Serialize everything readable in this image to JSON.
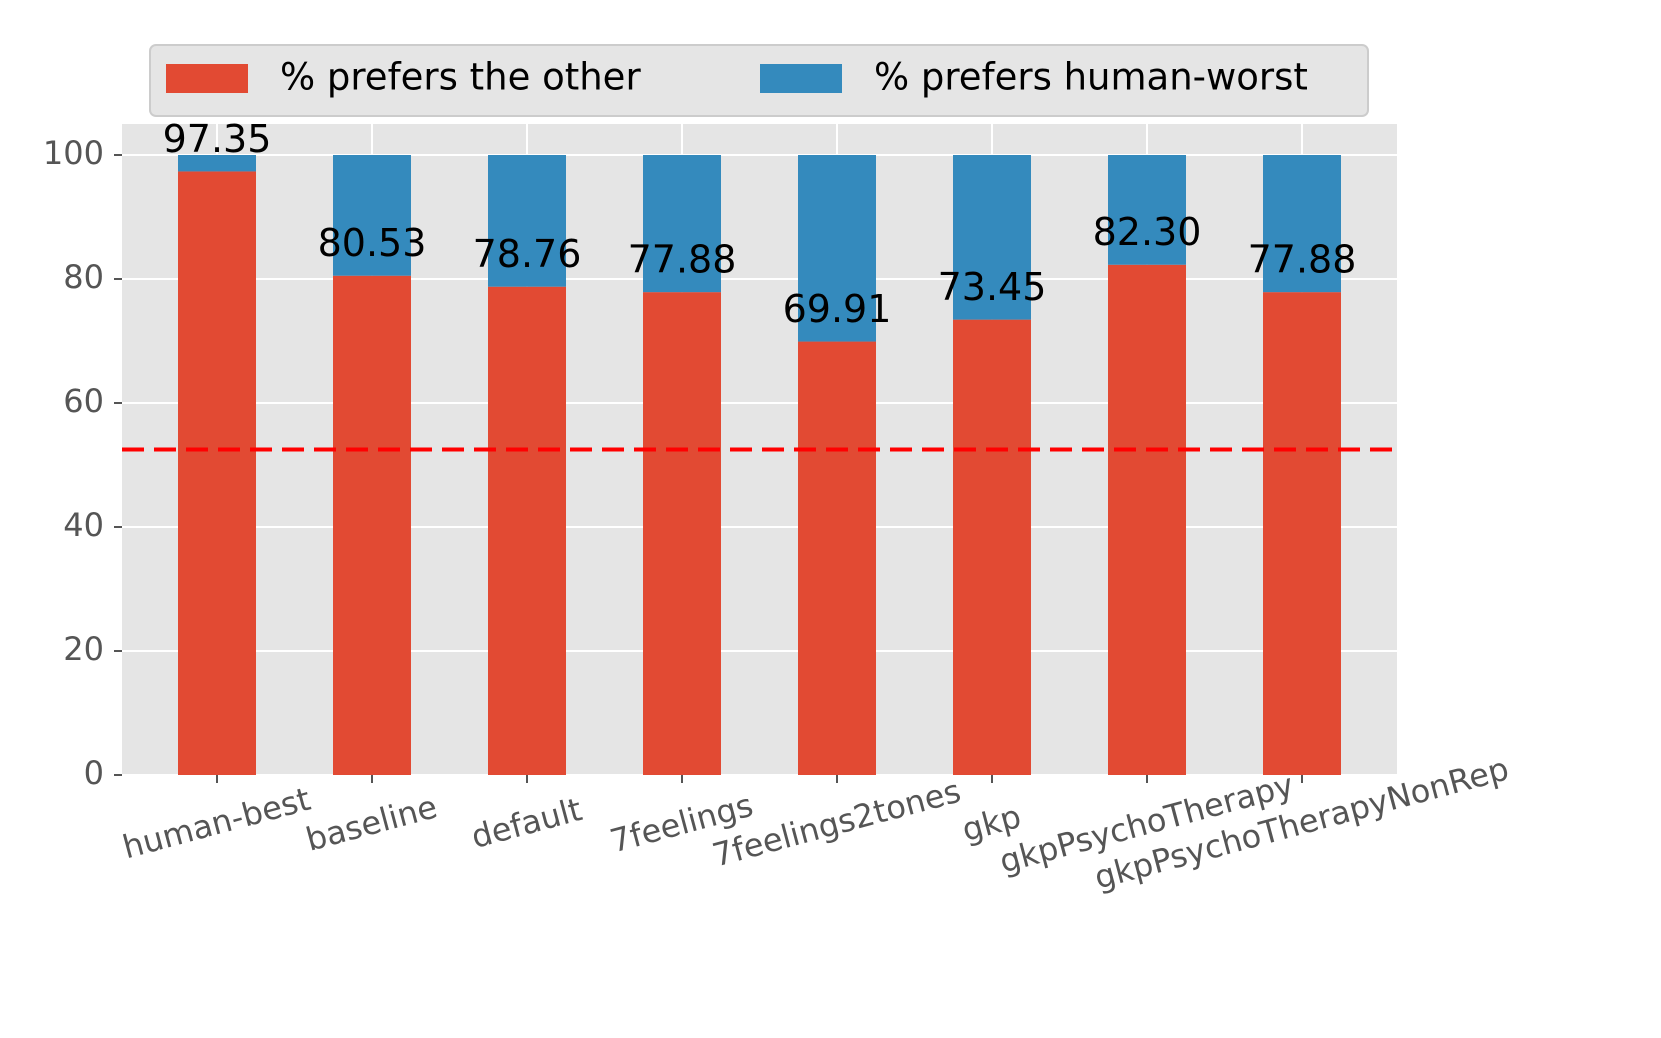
{
  "chart_data": {
    "type": "stacked-bar",
    "categories": [
      "human-best",
      "baseline",
      "default",
      "7feelings",
      "7feelings2tones",
      "gkp",
      "gkpPsychoTherapy",
      "gkpPsychoTherapyNonRep"
    ],
    "series": [
      {
        "name": "% prefers the other",
        "color": "#e24a33",
        "values": [
          97.35,
          80.53,
          78.76,
          77.88,
          69.91,
          73.45,
          82.3,
          77.88
        ],
        "value_labels": [
          "97.35",
          "80.53",
          "78.76",
          "77.88",
          "69.91",
          "73.45",
          "82.30",
          "77.88"
        ]
      },
      {
        "name": "% prefers human-worst",
        "color": "#348abd",
        "values": [
          2.65,
          19.47,
          21.24,
          22.12,
          30.09,
          26.55,
          17.7,
          22.12
        ]
      }
    ],
    "ylim": [
      0,
      105
    ],
    "yticks": [
      0,
      20,
      40,
      60,
      80,
      100
    ],
    "grid": true,
    "reference_line": {
      "value": 52.5,
      "color": "#ff0000",
      "style": "dashed"
    },
    "legend": "top"
  }
}
